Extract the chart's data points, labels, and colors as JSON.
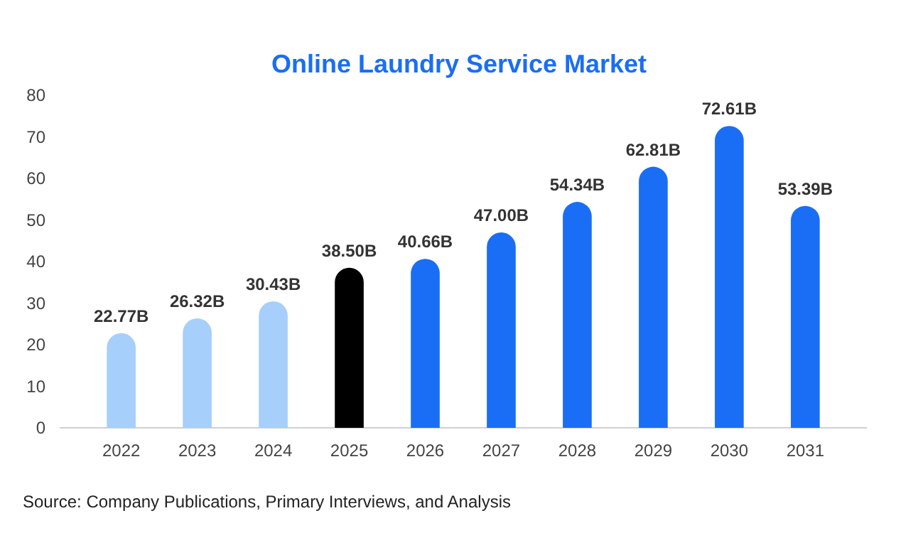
{
  "chart_data": {
    "type": "bar",
    "title": "Online Laundry Service Market",
    "categories": [
      "2022",
      "2023",
      "2024",
      "2025",
      "2026",
      "2027",
      "2028",
      "2029",
      "2030",
      "2031"
    ],
    "values": [
      22.77,
      26.32,
      30.43,
      38.5,
      40.66,
      47.0,
      54.34,
      62.81,
      72.61,
      53.39
    ],
    "colors": [
      "#a6cffb",
      "#a6cffb",
      "#a6cffb",
      "#000000",
      "#1a6ef5",
      "#1a6ef5",
      "#1a6ef5",
      "#1a6ef5",
      "#1a6ef5",
      "#1a6ef5"
    ],
    "value_labels": [
      "22.77B",
      "26.32B",
      "30.43B",
      "38.50B",
      "40.66B",
      "47.00B",
      "54.34B",
      "62.81B",
      "72.61B",
      "53.39B"
    ],
    "ylim": [
      0,
      80
    ],
    "yticks": [
      0,
      10,
      20,
      30,
      40,
      50,
      60,
      70,
      80
    ],
    "grid": false,
    "annotations": [
      "Source: Company Publications, Primary Interviews, and Analysis"
    ]
  }
}
